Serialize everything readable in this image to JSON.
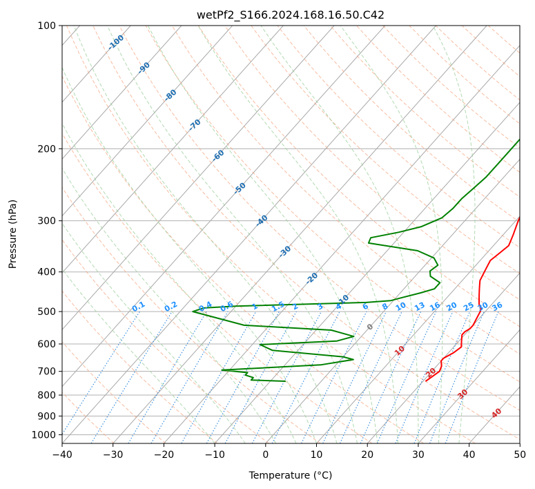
{
  "chart_data": {
    "type": "line",
    "title": "wetPf2_S166.2024.168.16.50.C42",
    "xlabel": "Temperature (°C)",
    "ylabel": "Pressure (hPa)",
    "xlim": [
      -40,
      50
    ],
    "ylim": [
      1050,
      100
    ],
    "y_scale": "log",
    "grid": true,
    "x_ticks": [
      "−40",
      "−30",
      "−20",
      "−10",
      "0",
      "10",
      "20",
      "30",
      "40",
      "50"
    ],
    "y_ticks": [
      "100",
      "200",
      "300",
      "400",
      "500",
      "600",
      "700",
      "800",
      "900",
      "1000"
    ],
    "series": [
      {
        "color": "#ff0000",
        "points": [
          [
            20.5,
            740
          ],
          [
            21.0,
            720
          ],
          [
            21.5,
            700
          ],
          [
            21.0,
            680
          ],
          [
            20.0,
            660
          ],
          [
            20.0,
            650
          ],
          [
            20.5,
            640
          ],
          [
            21.0,
            630
          ],
          [
            21.5,
            610
          ],
          [
            21.0,
            600
          ],
          [
            20.5,
            590
          ],
          [
            20.0,
            580
          ],
          [
            19.5,
            570
          ],
          [
            19.5,
            560
          ],
          [
            20.0,
            550
          ],
          [
            20.0,
            540
          ],
          [
            19.5,
            520
          ],
          [
            19.0,
            500
          ],
          [
            18.5,
            490
          ],
          [
            17.5,
            480
          ],
          [
            16.5,
            465
          ],
          [
            15.5,
            450
          ],
          [
            14.5,
            435
          ],
          [
            13.5,
            420
          ],
          [
            13.0,
            405
          ],
          [
            12.5,
            390
          ],
          [
            12.0,
            375
          ],
          [
            12.5,
            360
          ],
          [
            13.0,
            345
          ],
          [
            12.0,
            325
          ],
          [
            10.5,
            300
          ],
          [
            9.5,
            280
          ],
          [
            8.5,
            260
          ],
          [
            7.5,
            240
          ],
          [
            6.5,
            220
          ],
          [
            5.5,
            210
          ],
          [
            4.0,
            200
          ],
          [
            3.0,
            185
          ],
          [
            2.5,
            170
          ],
          [
            2.0,
            155
          ],
          [
            2.5,
            140
          ],
          [
            3.0,
            128
          ],
          [
            3.0,
            118
          ],
          [
            4.0,
            112
          ],
          [
            6.0,
            106
          ],
          [
            9.0,
            100
          ]
        ]
      },
      {
        "color": "#008000",
        "points": [
          [
            -7.0,
            740
          ],
          [
            -14.0,
            735
          ],
          [
            -14.0,
            725
          ],
          [
            -16.0,
            715
          ],
          [
            -16.0,
            705
          ],
          [
            -21.5,
            695
          ],
          [
            -3.0,
            675
          ],
          [
            2.5,
            655
          ],
          [
            0.0,
            645
          ],
          [
            -15.0,
            622
          ],
          [
            -18.5,
            602
          ],
          [
            -4.0,
            590
          ],
          [
            -1.5,
            575
          ],
          [
            -7.0,
            555
          ],
          [
            -25.0,
            540
          ],
          [
            -37.5,
            500
          ],
          [
            -36.0,
            490
          ],
          [
            -30.0,
            485
          ],
          [
            -5.0,
            475
          ],
          [
            -0.5,
            470
          ],
          [
            1.0,
            463
          ],
          [
            4.0,
            450
          ],
          [
            6.0,
            440
          ],
          [
            6.0,
            425
          ],
          [
            3.0,
            410
          ],
          [
            2.0,
            398
          ],
          [
            2.5,
            385
          ],
          [
            0.5,
            370
          ],
          [
            -4.0,
            355
          ],
          [
            -15.0,
            340
          ],
          [
            -15.5,
            330
          ],
          [
            -11.0,
            320
          ],
          [
            -7.5,
            310
          ],
          [
            -5.0,
            295
          ],
          [
            -4.5,
            280
          ],
          [
            -4.5,
            265
          ],
          [
            -4.0,
            250
          ],
          [
            -3.5,
            235
          ],
          [
            -3.5,
            220
          ],
          [
            -3.5,
            200
          ],
          [
            -3.5,
            185
          ],
          [
            -4.0,
            170
          ],
          [
            -4.5,
            155
          ],
          [
            -4.5,
            140
          ],
          [
            -3.5,
            128
          ],
          [
            -2.5,
            118
          ],
          [
            -1.5,
            108
          ],
          [
            -0.5,
            100
          ]
        ]
      }
    ],
    "reference_lines": {
      "isotherm_spacing_C": 10,
      "dry_adiabat_theta_K": [
        230,
        240,
        250,
        260,
        270,
        280,
        290,
        300,
        310,
        320,
        330,
        340,
        350,
        360,
        370,
        380,
        390,
        400,
        410,
        420,
        430,
        440,
        450,
        460,
        470
      ],
      "moist_adiabat_start_C": [
        -10,
        -4,
        2,
        6,
        10,
        14,
        18,
        22,
        26,
        30,
        34,
        38
      ],
      "mixing_ratio_g_per_kg": [
        0.1,
        0.2,
        0.4,
        0.6,
        1,
        1.5,
        2,
        3,
        4,
        6,
        8,
        10,
        13,
        16,
        20,
        25,
        30,
        36
      ]
    },
    "annotations": {
      "isotherm_labels": [
        {
          "text": "-100",
          "t": -100,
          "p": 110
        },
        {
          "text": "-90",
          "t": -90,
          "p": 127
        },
        {
          "text": "-80",
          "t": -80,
          "p": 148
        },
        {
          "text": "-70",
          "t": -70,
          "p": 175
        },
        {
          "text": "-60",
          "t": -60,
          "p": 208
        },
        {
          "text": "-50",
          "t": -50,
          "p": 250
        },
        {
          "text": "-40",
          "t": -40,
          "p": 300
        },
        {
          "text": "-30",
          "t": -30,
          "p": 357
        },
        {
          "text": "-20",
          "t": -20,
          "p": 415
        },
        {
          "text": "-10",
          "t": -10,
          "p": 470
        },
        {
          "text": "0",
          "t": 0,
          "p": 545
        },
        {
          "text": "10",
          "t": 10,
          "p": 623
        },
        {
          "text": "20",
          "t": 20,
          "p": 705
        },
        {
          "text": "30",
          "t": 30,
          "p": 795
        },
        {
          "text": "40",
          "t": 40,
          "p": 885
        }
      ],
      "mixing_ratio_labels": [
        "0.1",
        "0.2",
        "0.4",
        "0.6",
        "1",
        "1.5",
        "2",
        "3",
        "4",
        "6",
        "8",
        "10",
        "13",
        "16",
        "20",
        "25",
        "30",
        "36"
      ],
      "label_colors": {
        "cold": "#1f6fb2",
        "zero": "#808080",
        "warm": "#d62728",
        "mixing": "#1e90ff"
      }
    }
  }
}
